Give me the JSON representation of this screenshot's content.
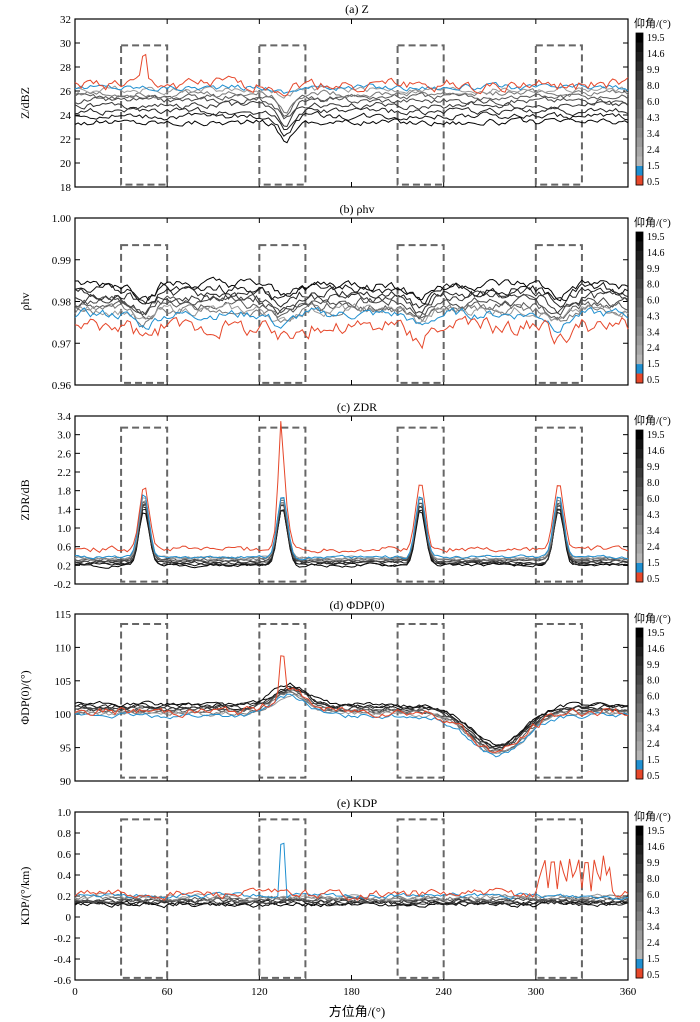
{
  "figure": {
    "xlabel": "方位角/(°)",
    "xticks": [
      0,
      60,
      120,
      180,
      240,
      300,
      360
    ],
    "xlim": [
      0,
      360
    ],
    "colorbar": {
      "title": "仰角/(°)",
      "labels": [
        "19.5",
        "14.6",
        "9.9",
        "8.0",
        "6.0",
        "4.3",
        "3.4",
        "2.4",
        "1.5",
        "0.5"
      ],
      "colors": [
        "#000000",
        "#111111",
        "#1e1e1e",
        "#2c2c2c",
        "#3a3a3a",
        "#474747",
        "#555555",
        "#636363",
        "#717171",
        "#7f7f7f",
        "#8d8d8d",
        "#9b9b9b",
        "#a8a8a8",
        "#b5b5b5",
        "#1f8fd0",
        "#e6472a"
      ]
    },
    "dashed_boxes_azimuth": [
      [
        30,
        60
      ],
      [
        120,
        150
      ],
      [
        210,
        240
      ],
      [
        300,
        330
      ]
    ]
  },
  "chart_data": [
    {
      "type": "line",
      "title": "(a) Z",
      "ylabel": "Z/dBZ",
      "ylim": [
        18,
        32
      ],
      "yticks": [
        "18",
        "20",
        "22",
        "24",
        "26",
        "28",
        "30",
        "32"
      ],
      "yvals": [
        18,
        20,
        22,
        24,
        26,
        28,
        30,
        32
      ],
      "box_y": [
        18.2,
        29.8
      ],
      "series_note": "10 elevation curves",
      "series": [
        {
          "name": "19.5",
          "base": 23.4
        },
        {
          "name": "14.6",
          "base": 23.9
        },
        {
          "name": "9.9",
          "base": 24.3
        },
        {
          "name": "8.0",
          "base": 24.8
        },
        {
          "name": "6.0",
          "base": 25.2
        },
        {
          "name": "4.3",
          "base": 25.5
        },
        {
          "name": "3.4",
          "base": 25.8
        },
        {
          "name": "2.4",
          "base": 26.1
        },
        {
          "name": "1.5",
          "base": 26.3
        },
        {
          "name": "0.5",
          "base": 26.5
        }
      ]
    },
    {
      "type": "line",
      "title": "(b) ρhv",
      "ylabel": "ρhv",
      "ylim": [
        0.96,
        1.0
      ],
      "yticks": [
        "0.96",
        "0.97",
        "0.98",
        "0.99",
        "1.00"
      ],
      "yvals": [
        0.96,
        0.97,
        0.98,
        0.99,
        1.0
      ],
      "box_y": [
        0.9605,
        0.9935
      ],
      "series": [
        {
          "name": "19.5",
          "base": 0.984
        },
        {
          "name": "14.6",
          "base": 0.983
        },
        {
          "name": "9.9",
          "base": 0.982
        },
        {
          "name": "8.0",
          "base": 0.981
        },
        {
          "name": "6.0",
          "base": 0.98
        },
        {
          "name": "4.3",
          "base": 0.979
        },
        {
          "name": "3.4",
          "base": 0.978
        },
        {
          "name": "2.4",
          "base": 0.978
        },
        {
          "name": "1.5",
          "base": 0.977
        },
        {
          "name": "0.5",
          "base": 0.974
        }
      ]
    },
    {
      "type": "line",
      "title": "(c) ZDR",
      "ylabel": "ZDR/dB",
      "ylim": [
        -0.2,
        3.4
      ],
      "yticks": [
        "-0.2",
        "0.2",
        "0.6",
        "1.0",
        "1.4",
        "1.8",
        "2.2",
        "2.6",
        "3.0",
        "3.4"
      ],
      "yvals": [
        -0.2,
        0.2,
        0.6,
        1.0,
        1.4,
        1.8,
        2.2,
        2.6,
        3.0,
        3.4
      ],
      "box_y": [
        -0.15,
        3.15
      ],
      "peaks_azimuth": [
        45,
        135,
        225,
        315
      ],
      "series": [
        {
          "name": "19.5",
          "base": 0.2
        },
        {
          "name": "14.6",
          "base": 0.22
        },
        {
          "name": "9.9",
          "base": 0.25
        },
        {
          "name": "8.0",
          "base": 0.27
        },
        {
          "name": "6.0",
          "base": 0.3
        },
        {
          "name": "4.3",
          "base": 0.32
        },
        {
          "name": "3.4",
          "base": 0.34
        },
        {
          "name": "2.4",
          "base": 0.36
        },
        {
          "name": "1.5",
          "base": 0.38
        },
        {
          "name": "0.5",
          "base": 0.55
        }
      ]
    },
    {
      "type": "line",
      "title": "(d) ΦDP(0)",
      "ylabel": "ΦDP(0)/(°)",
      "ylim": [
        90,
        115
      ],
      "yticks": [
        "90",
        "95",
        "100",
        "105",
        "110",
        "115"
      ],
      "yvals": [
        90,
        95,
        100,
        105,
        110,
        115
      ],
      "box_y": [
        90.5,
        113.5
      ],
      "series": [
        {
          "name": "19.5",
          "base": 101.5
        },
        {
          "name": "14.6",
          "base": 101.3
        },
        {
          "name": "9.9",
          "base": 101.1
        },
        {
          "name": "8.0",
          "base": 100.9
        },
        {
          "name": "6.0",
          "base": 100.7
        },
        {
          "name": "4.3",
          "base": 100.5
        },
        {
          "name": "3.4",
          "base": 100.3
        },
        {
          "name": "2.4",
          "base": 100.1
        },
        {
          "name": "1.5",
          "base": 99.8
        },
        {
          "name": "0.5",
          "base": 100.4
        }
      ]
    },
    {
      "type": "line",
      "title": "(e) KDP",
      "ylabel": "KDP/(°/km)",
      "ylim": [
        -0.6,
        1.0
      ],
      "yticks": [
        "-0.6",
        "-0.4",
        "-0.2",
        "0",
        "0.2",
        "0.4",
        "0.6",
        "0.8",
        "1.0"
      ],
      "yvals": [
        -0.6,
        -0.4,
        -0.2,
        0,
        0.2,
        0.4,
        0.6,
        0.8,
        1.0
      ],
      "box_y": [
        -0.58,
        0.93
      ],
      "series": [
        {
          "name": "19.5",
          "base": 0.12
        },
        {
          "name": "14.6",
          "base": 0.13
        },
        {
          "name": "9.9",
          "base": 0.14
        },
        {
          "name": "8.0",
          "base": 0.15
        },
        {
          "name": "6.0",
          "base": 0.16
        },
        {
          "name": "4.3",
          "base": 0.17
        },
        {
          "name": "3.4",
          "base": 0.18
        },
        {
          "name": "2.4",
          "base": 0.19
        },
        {
          "name": "1.5",
          "base": 0.2
        },
        {
          "name": "0.5",
          "base": 0.22
        }
      ]
    }
  ]
}
